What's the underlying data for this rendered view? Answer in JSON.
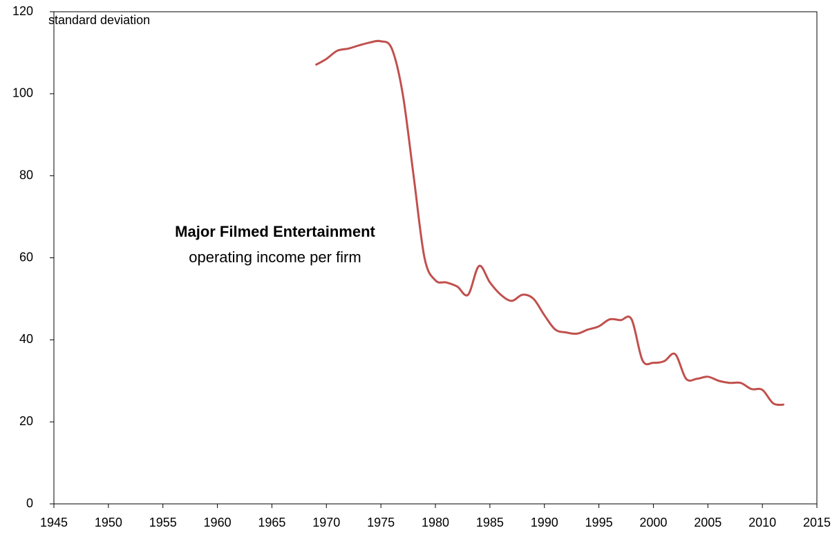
{
  "chart_data": {
    "type": "line",
    "y_label": "standard deviation",
    "annotation_title": "Major Filmed Entertainment",
    "annotation_subtitle": "operating income per firm",
    "x": [
      1969,
      1970,
      1971,
      1972,
      1973,
      1974,
      1975,
      1976,
      1977,
      1978,
      1979,
      1980,
      1981,
      1982,
      1983,
      1984,
      1985,
      1986,
      1987,
      1988,
      1989,
      1990,
      1991,
      1992,
      1993,
      1994,
      1995,
      1996,
      1997,
      1998,
      1999,
      2000,
      2001,
      2002,
      2003,
      2004,
      2005,
      2006,
      2007,
      2008,
      2009,
      2010,
      2011,
      2012
    ],
    "series": [
      {
        "name": "Major Filmed Entertainment",
        "color": "#c0504d",
        "values": [
          107,
          108.5,
          110.5,
          111,
          111.8,
          112.5,
          112.8,
          111,
          100,
          80,
          60,
          54.5,
          54,
          53,
          51,
          58,
          54,
          51,
          49.5,
          51,
          50,
          46,
          42.5,
          41.8,
          41.5,
          42.5,
          43.3,
          45,
          44.8,
          45,
          35,
          34.4,
          34.8,
          36.5,
          30.5,
          30.5,
          31,
          30,
          29.5,
          29.5,
          28,
          27.8,
          24.5,
          24.2
        ]
      }
    ],
    "xlim": [
      1945,
      2015
    ],
    "xticks": [
      1945,
      1950,
      1955,
      1960,
      1965,
      1970,
      1975,
      1980,
      1985,
      1990,
      1995,
      2000,
      2005,
      2010,
      2015
    ],
    "ylim": [
      0,
      120
    ],
    "yticks": [
      0,
      20,
      40,
      60,
      80,
      100,
      120
    ]
  }
}
